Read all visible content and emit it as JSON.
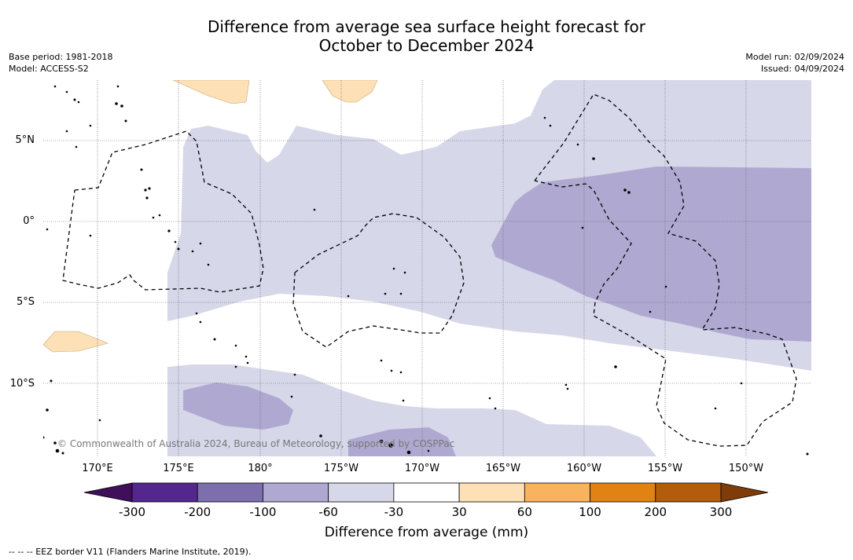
{
  "title": {
    "line1": "Difference from average sea surface height forecast for",
    "line2": "October to December 2024"
  },
  "meta_left": {
    "base_period": "Base period: 1981-2018",
    "model": "Model: ACCESS-S2"
  },
  "meta_right": {
    "model_run": "Model run: 02/09/2024",
    "issued": "Issued: 04/09/2024"
  },
  "map": {
    "lat_labels": [
      "5°N",
      "0°",
      "5°S",
      "10°S"
    ],
    "lon_labels": [
      "170°E",
      "175°E",
      "180°",
      "175°W",
      "170°W",
      "165°W",
      "160°W",
      "155°W",
      "150°W"
    ],
    "copyright": "© Commonwealth of Australia 2024, Bureau of Meteorology, supported by COSPPac",
    "region_colors": {
      "light_purple": "#d6d7e9",
      "medium_purple": "#afa9d1",
      "light_orange": "#fde0b6"
    }
  },
  "colorbar": {
    "label": "Difference from average (mm)",
    "ticks": [
      "-300",
      "-200",
      "-100",
      "-60",
      "-30",
      "30",
      "60",
      "100",
      "200",
      "300"
    ],
    "colors": [
      "#54278f",
      "#7d6eae",
      "#afa9d1",
      "#d6d7e9",
      "#ffffff",
      "#fde0b6",
      "#f9b35f",
      "#e08214",
      "#b25c0c"
    ],
    "extend_low_color": "#3f0f5c",
    "extend_high_color": "#7f3b08"
  },
  "footnote": "--  --  -- EEZ border V11 (Flanders Marine Institute, 2019)."
}
